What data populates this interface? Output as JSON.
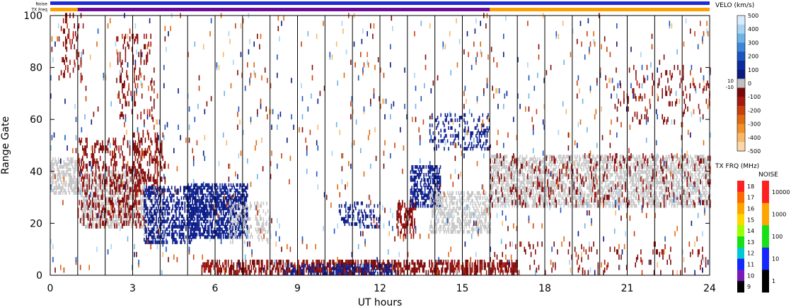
{
  "chart_data": {
    "type": "heatmap",
    "header": {
      "noise_label": "Noise",
      "txfreq_label": "TX Freq",
      "noise_bar": [
        {
          "from": 0,
          "to": 24,
          "color": "#1f2bd6"
        }
      ],
      "txfreq_bar": [
        {
          "from": 0,
          "to": 1,
          "color": "#ff9e00"
        },
        {
          "from": 1,
          "to": 16,
          "color": "#6b0d9c"
        },
        {
          "from": 16,
          "to": 24,
          "color": "#ff9e00"
        }
      ]
    },
    "xlabel": "UT hours",
    "ylabel": "Range Gate",
    "xlim": [
      0,
      24
    ],
    "ylim": [
      0,
      100
    ],
    "x_ticks": [
      0,
      3,
      6,
      9,
      12,
      15,
      18,
      21,
      24
    ],
    "y_ticks": [
      0,
      20,
      40,
      60,
      80,
      100
    ],
    "hour_lines": [
      1,
      2,
      3,
      4,
      5,
      6,
      7,
      8,
      9,
      10,
      11,
      12,
      13,
      14,
      15,
      16,
      17,
      18,
      19,
      20,
      21,
      22,
      23
    ],
    "velocity_colorbar": {
      "title": "VELO (km/s)",
      "tick_labels": [
        "500",
        "400",
        "300",
        "200",
        "100",
        "0",
        "-100",
        "-200",
        "-300",
        "-400",
        "-500"
      ],
      "extra_labels": [
        "10",
        "-10"
      ],
      "colors": [
        "#d8ecff",
        "#a8d4f4",
        "#6cb4e8",
        "#3a86d8",
        "#1a55c0",
        "#0c2c9e",
        "#0a1a80",
        "#c0c0c0",
        "#7a0a0a",
        "#a81a10",
        "#c84010",
        "#e06a10",
        "#f0902a",
        "#f8b868",
        "#fcd8a8"
      ]
    },
    "txfreq_colorbar": {
      "title": "TX FRQ (MHz)",
      "tick_labels": [
        "18",
        "17",
        "16",
        "15",
        "14",
        "13",
        "12",
        "11",
        "10",
        "9"
      ],
      "colors": [
        "#ff2020",
        "#ff6a00",
        "#ffa500",
        "#ffd700",
        "#9aff00",
        "#18e018",
        "#00c8d0",
        "#1428ff",
        "#7a1ab8",
        "#000000"
      ]
    },
    "noise_colorbar": {
      "title": "NOISE",
      "tick_labels": [
        "10000",
        "1000",
        "100",
        "10",
        "1"
      ],
      "colors": [
        "#ff2020",
        "#ffa500",
        "#18e018",
        "#1428ff",
        "#000000"
      ]
    },
    "regions": [
      {
        "kind": "ground",
        "x": [
          0,
          1.1
        ],
        "y": [
          31,
          45
        ],
        "density": 0.55
      },
      {
        "kind": "ground",
        "x": [
          1.1,
          3.4
        ],
        "y": [
          18,
          40
        ],
        "density": 0.5
      },
      {
        "kind": "red",
        "x": [
          1.0,
          3.3
        ],
        "y": [
          18,
          52
        ],
        "density": 0.18
      },
      {
        "kind": "red",
        "x": [
          3.0,
          4.2
        ],
        "y": [
          30,
          55
        ],
        "density": 0.2
      },
      {
        "kind": "red",
        "x": [
          0.3,
          1.2
        ],
        "y": [
          74,
          100
        ],
        "density": 0.1
      },
      {
        "kind": "red",
        "x": [
          2.4,
          3.8
        ],
        "y": [
          60,
          92
        ],
        "density": 0.1
      },
      {
        "kind": "ground",
        "x": [
          3.4,
          4.2
        ],
        "y": [
          12,
          34
        ],
        "density": 0.4
      },
      {
        "kind": "blue",
        "x": [
          3.4,
          5.2
        ],
        "y": [
          12,
          34
        ],
        "density": 0.45
      },
      {
        "kind": "blue",
        "x": [
          5.0,
          7.2
        ],
        "y": [
          14,
          35
        ],
        "density": 0.6
      },
      {
        "kind": "ground",
        "x": [
          6.5,
          8.0
        ],
        "y": [
          12,
          28
        ],
        "density": 0.25
      },
      {
        "kind": "blue",
        "x": [
          10.5,
          12.0
        ],
        "y": [
          18,
          28
        ],
        "density": 0.3
      },
      {
        "kind": "red",
        "x": [
          12.6,
          13.3
        ],
        "y": [
          14,
          28
        ],
        "density": 0.3
      },
      {
        "kind": "blue",
        "x": [
          13.1,
          14.2
        ],
        "y": [
          26,
          42
        ],
        "density": 0.5
      },
      {
        "kind": "ground",
        "x": [
          13.8,
          16.0
        ],
        "y": [
          16,
          32
        ],
        "density": 0.45
      },
      {
        "kind": "blue",
        "x": [
          13.8,
          16.0
        ],
        "y": [
          48,
          62
        ],
        "density": 0.2
      },
      {
        "kind": "ground",
        "x": [
          16.0,
          24.0
        ],
        "y": [
          26,
          46
        ],
        "density": 0.5
      },
      {
        "kind": "red",
        "x": [
          16.0,
          24.0
        ],
        "y": [
          26,
          46
        ],
        "density": 0.07
      },
      {
        "kind": "red",
        "x": [
          20.5,
          24.0
        ],
        "y": [
          58,
          80
        ],
        "density": 0.06
      },
      {
        "kind": "red",
        "x": [
          5.5,
          17.0
        ],
        "y": [
          0,
          5
        ],
        "density": 0.45
      },
      {
        "kind": "blue",
        "x": [
          8.5,
          12.5
        ],
        "y": [
          0,
          4
        ],
        "density": 0.4
      },
      {
        "kind": "red",
        "x": [
          16.0,
          24.0
        ],
        "y": [
          0,
          12
        ],
        "density": 0.04
      },
      {
        "kind": "sparse",
        "x": [
          0,
          24
        ],
        "y": [
          0,
          100
        ],
        "density": 0.015
      }
    ]
  }
}
